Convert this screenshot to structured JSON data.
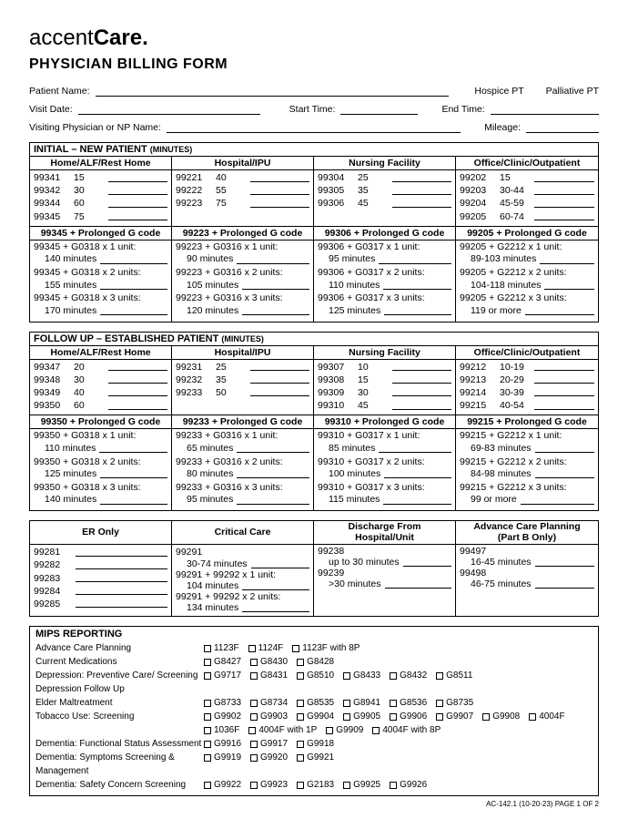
{
  "logo": {
    "pre": "accent",
    "bold": "Care",
    "dot": "."
  },
  "title": "PHYSICIAN BILLING FORM",
  "fields": {
    "patient": "Patient Name:",
    "hospice": "Hospice PT",
    "palliative": "Palliative PT",
    "visit": "Visit Date:",
    "start": "Start Time:",
    "end": "End Time:",
    "phys": "Visiting Physician or NP Name:",
    "mileage": "Mileage:"
  },
  "section_initial": {
    "title": "INITIAL – NEW PATIENT",
    "sub": "(MINUTES)",
    "headers": [
      "Home/ALF/Rest Home",
      "Hospital/IPU",
      "Nursing Facility",
      "Office/Clinic/Outpatient"
    ],
    "cols": [
      [
        [
          "99341",
          "15"
        ],
        [
          "99342",
          "30"
        ],
        [
          "99344",
          "60"
        ],
        [
          "99345",
          "75"
        ]
      ],
      [
        [
          "99221",
          "40"
        ],
        [
          "99222",
          "55"
        ],
        [
          "99223",
          "75"
        ]
      ],
      [
        [
          "99304",
          "25"
        ],
        [
          "99305",
          "35"
        ],
        [
          "99306",
          "45"
        ]
      ],
      [
        [
          "99202",
          "15"
        ],
        [
          "99203",
          "30-44"
        ],
        [
          "99204",
          "45-59"
        ],
        [
          "99205",
          "60-74"
        ]
      ]
    ],
    "prolonged_headers": [
      "99345 + Prolonged G code",
      "99223 + Prolonged G code",
      "99306 + Prolonged G code",
      "99205 + Prolonged G code"
    ],
    "prolonged": [
      [
        [
          "99345 + G0318 x 1 unit:",
          "140 minutes"
        ],
        [
          "99345 + G0318 x 2 units:",
          "155 minutes"
        ],
        [
          "99345 + G0318 x 3 units:",
          "170 minutes"
        ]
      ],
      [
        [
          "99223 + G0316 x 1 unit:",
          "90 minutes"
        ],
        [
          "99223 + G0316 x 2 units:",
          "105 minutes"
        ],
        [
          "99223 + G0316 x 3 units:",
          "120 minutes"
        ]
      ],
      [
        [
          "99306 + G0317 x 1 unit:",
          "95 minutes"
        ],
        [
          "99306 + G0317 x 2 units:",
          "110 minutes"
        ],
        [
          "99306 + G0317 x 3 units:",
          "125 minutes"
        ]
      ],
      [
        [
          "99205 + G2212 x 1 unit:",
          "89-103 minutes"
        ],
        [
          "99205 + G2212 x 2 units:",
          "104-118 minutes"
        ],
        [
          "99205 + G2212 x 3 units:",
          "119 or more"
        ]
      ]
    ]
  },
  "section_followup": {
    "title": "FOLLOW UP – ESTABLISHED PATIENT",
    "sub": "(MINUTES)",
    "headers": [
      "Home/ALF/Rest Home",
      "Hospital/IPU",
      "Nursing Facility",
      "Office/Clinic/Outpatient"
    ],
    "cols": [
      [
        [
          "99347",
          "20"
        ],
        [
          "99348",
          "30"
        ],
        [
          "99349",
          "40"
        ],
        [
          "99350",
          "60"
        ]
      ],
      [
        [
          "99231",
          "25"
        ],
        [
          "99232",
          "35"
        ],
        [
          "99233",
          "50"
        ]
      ],
      [
        [
          "99307",
          "10"
        ],
        [
          "99308",
          "15"
        ],
        [
          "99309",
          "30"
        ],
        [
          "99310",
          "45"
        ]
      ],
      [
        [
          "99212",
          "10-19"
        ],
        [
          "99213",
          "20-29"
        ],
        [
          "99214",
          "30-39"
        ],
        [
          "99215",
          "40-54"
        ]
      ]
    ],
    "prolonged_headers": [
      "99350 + Prolonged G code",
      "99233 + Prolonged G code",
      "99310 + Prolonged G code",
      "99215 + Prolonged G code"
    ],
    "prolonged": [
      [
        [
          "99350 + G0318 x 1 unit:",
          "110 minutes"
        ],
        [
          "99350 + G0318 x 2 units:",
          "125 minutes"
        ],
        [
          "99350 + G0318 x 3 units:",
          "140 minutes"
        ]
      ],
      [
        [
          "99233 + G0316 x 1 unit:",
          "65 minutes"
        ],
        [
          "99233 + G0316 x 2 units:",
          "80 minutes"
        ],
        [
          "99233 + G0316 x 3 units:",
          "95 minutes"
        ]
      ],
      [
        [
          "99310 + G0317 x 1 unit:",
          "85 minutes"
        ],
        [
          "99310 + G0317 x 2 units:",
          "100 minutes"
        ],
        [
          "99310 + G0317 x 3 units:",
          "115 minutes"
        ]
      ],
      [
        [
          "99215 + G2212 x 1 unit:",
          "69-83 minutes"
        ],
        [
          "99215 + G2212 x 2 units:",
          "84-98 minutes"
        ],
        [
          "99215 + G2212 x 3 units:",
          "99 or more"
        ]
      ]
    ]
  },
  "section_other": {
    "headers": [
      "ER Only",
      "Critical Care",
      "Discharge From Hospital/Unit",
      "Advance Care Planning (Part B Only)"
    ],
    "er": [
      "99281",
      "99282",
      "99283",
      "99284",
      "99285"
    ],
    "cc": {
      "code": "99291",
      "lines": [
        [
          "",
          "30-74 minutes"
        ],
        [
          "99291 + 99292 x 1 unit:",
          "104 minutes"
        ],
        [
          "99291 + 99292 x 2 units:",
          "134 minutes"
        ]
      ]
    },
    "discharge": [
      [
        "99238",
        "up to 30 minutes"
      ],
      [
        "99239",
        ">30 minutes"
      ]
    ],
    "acp": [
      [
        "99497",
        "16-45 minutes"
      ],
      [
        "99498",
        "46-75 minutes"
      ]
    ]
  },
  "mips": {
    "title": "MIPS REPORTING",
    "rows": [
      {
        "label": "Advance Care Planning",
        "opts": [
          "1123F",
          "1124F",
          "1123F with 8P"
        ]
      },
      {
        "label": "Current Medications",
        "opts": [
          "G8427",
          "G8430",
          "G8428"
        ]
      },
      {
        "label": "Depression: Preventive Care/ Screening Depression Follow Up",
        "opts": [
          "G9717",
          "G8431",
          "G8510",
          "G8433",
          "G8432",
          "G8511"
        ]
      },
      {
        "label": "Elder Maltreatment",
        "opts": [
          "G8733",
          "G8734",
          "G8535",
          "G8941",
          "G8536",
          "G8735"
        ]
      },
      {
        "label": "Tobacco Use: Screening",
        "opts": [
          "G9902",
          "G9903",
          "G9904",
          "G9905",
          "G9906",
          "G9907",
          "G9908",
          "4004F",
          "1036F",
          "4004F with 1P",
          "G9909",
          "4004F with 8P"
        ]
      },
      {
        "label": "Dementia: Functional Status Assessment",
        "opts": [
          "G9916",
          "G9917",
          "G9918"
        ]
      },
      {
        "label": "Dementia: Symptoms Screening & Management",
        "opts": [
          "G9919",
          "G9920",
          "G9921"
        ]
      },
      {
        "label": "Dementia: Safety Concern Screening",
        "opts": [
          "G9922",
          "G9923",
          "G2183",
          "G9925",
          "G9926"
        ]
      }
    ]
  },
  "footer": "AC-142.1   (10-20-23)   PAGE 1 OF 2"
}
